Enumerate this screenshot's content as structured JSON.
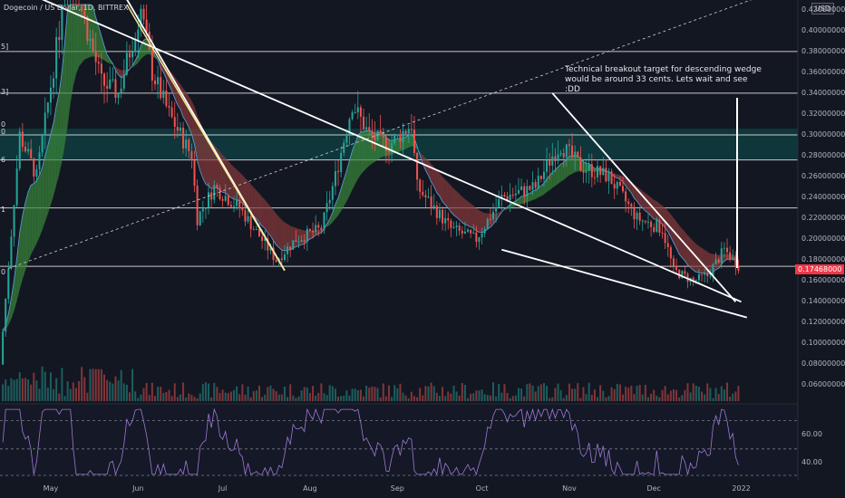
{
  "header": {
    "title": "Dogecoin / US Dollar, 1D, BITTREX",
    "currency": "USD"
  },
  "annotation": {
    "text": "Technical breakout target for descending wedge would be around 33 cents. Lets wait and see :DD"
  },
  "price_tag": "0.17468000",
  "edge_labels": [
    "5]",
    "3]",
    "0",
    "0",
    "6",
    "1",
    "0"
  ],
  "rsi_axis": [
    {
      "label": "60.00",
      "value": 60
    },
    {
      "label": "40.00",
      "value": 40
    }
  ],
  "chart_data": {
    "type": "candlestick",
    "title": "Dogecoin / US Dollar, 1D, BITTREX",
    "y_axis_ticks": [
      "0.06000000",
      "0.08000000",
      "0.10000000",
      "0.12000000",
      "0.14000000",
      "0.16000000",
      "0.18000000",
      "0.20000000",
      "0.22000000",
      "0.24000000",
      "0.26000000",
      "0.28000000",
      "0.30000000",
      "0.32000000",
      "0.34000000",
      "0.36000000",
      "0.38000000",
      "0.40000000",
      "0.42000000"
    ],
    "y_range": [
      0.05,
      0.425
    ],
    "x_axis_ticks": [
      "May",
      "Jun",
      "Jul",
      "Aug",
      "Sep",
      "Oct",
      "Nov",
      "Dec",
      "2022"
    ],
    "last_price": 0.17468,
    "horizontal_levels": [
      0.38,
      0.34,
      0.3,
      0.276,
      0.23,
      0.174
    ],
    "supply_zone": [
      0.276,
      0.306
    ],
    "trendlines": [
      {
        "from": [
          "2021-04-28",
          0.43
        ],
        "to": [
          "2022-01-01",
          0.14
        ]
      },
      {
        "from": [
          "2021-05-28",
          0.43
        ],
        "to": [
          "2021-07-23",
          0.17
        ]
      },
      {
        "from": [
          "2021-10-08",
          0.19
        ],
        "to": [
          "2022-01-03",
          0.125
        ]
      },
      {
        "from": [
          "2021-10-26",
          0.34
        ],
        "to": [
          "2021-12-30",
          0.14
        ]
      }
    ],
    "rsi_range": [
      30,
      80
    ]
  }
}
